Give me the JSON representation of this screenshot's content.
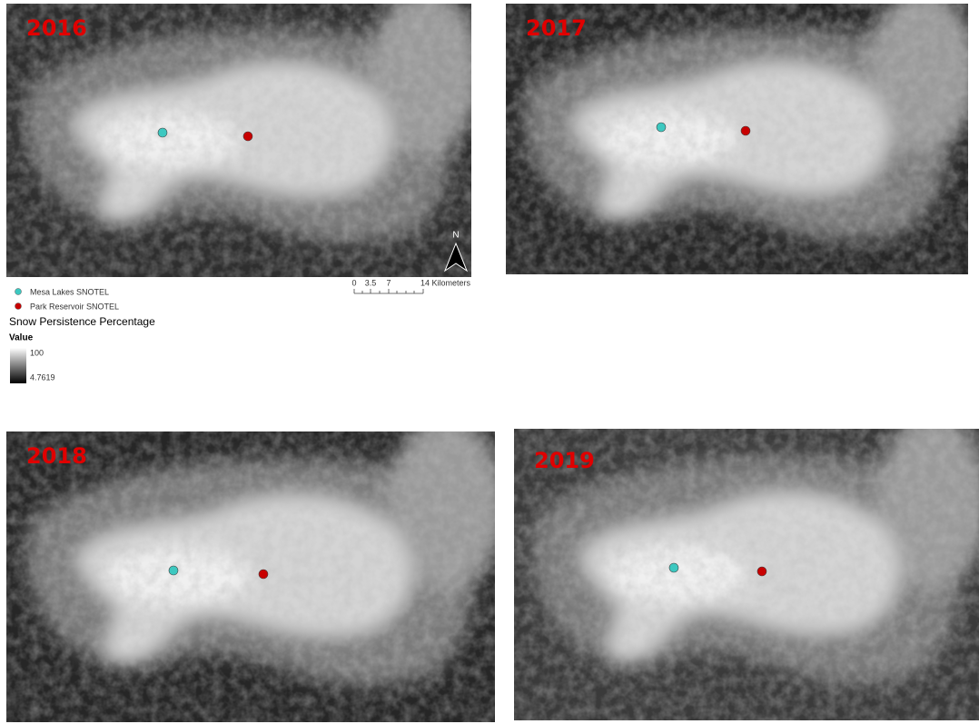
{
  "panels": [
    {
      "year": "2016"
    },
    {
      "year": "2017"
    },
    {
      "year": "2018"
    },
    {
      "year": "2019"
    }
  ],
  "legend": {
    "sites": [
      "Mesa Lakes SNOTEL",
      "Park Reservoir SNOTEL"
    ],
    "title": "Snow Persistence Percentage",
    "value_heading": "Value",
    "max_label": "100",
    "min_label": "4.7619"
  },
  "scale_bar": {
    "labels": [
      "0",
      "3.5",
      "7",
      "14 Kilometers"
    ]
  },
  "north_label": "N"
}
